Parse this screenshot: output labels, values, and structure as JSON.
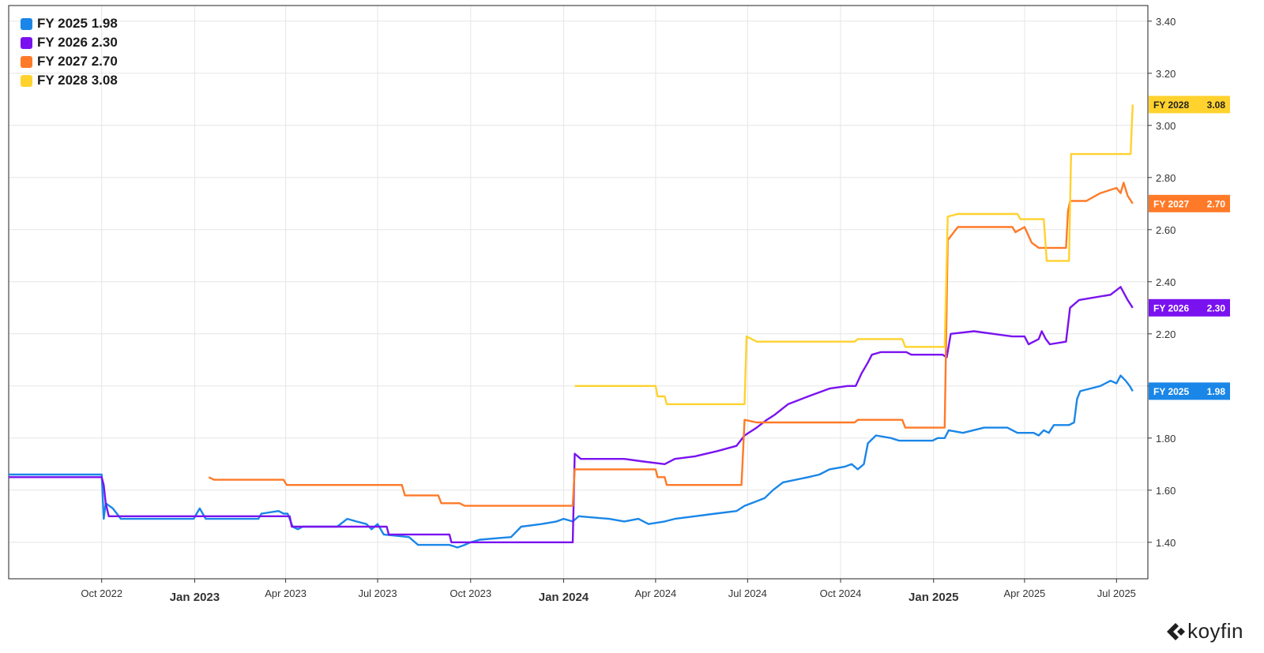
{
  "legend": [
    {
      "label": "FY 2025",
      "value": "1.98"
    },
    {
      "label": "FY 2026",
      "value": "2.30"
    },
    {
      "label": "FY 2027",
      "value": "2.70"
    },
    {
      "label": "FY 2028",
      "value": "3.08"
    }
  ],
  "brand": {
    "name": "koyfin"
  },
  "chart_data": {
    "type": "line",
    "xlim": [
      "2022-07-01",
      "2025-08-01"
    ],
    "ylim": [
      1.26,
      3.46
    ],
    "grid": true,
    "legend_position": "top-left",
    "y_ticks": [
      "1.40",
      "1.60",
      "1.80",
      "2.00",
      "2.20",
      "2.40",
      "2.60",
      "2.80",
      "3.00",
      "3.20",
      "3.40"
    ],
    "x_ticks": [
      {
        "date": "2022-10-01",
        "label": "Oct 2022",
        "bold": false
      },
      {
        "date": "2023-01-01",
        "label": "Jan 2023",
        "bold": true
      },
      {
        "date": "2023-04-01",
        "label": "Apr 2023",
        "bold": false
      },
      {
        "date": "2023-07-01",
        "label": "Jul 2023",
        "bold": false
      },
      {
        "date": "2023-10-01",
        "label": "Oct 2023",
        "bold": false
      },
      {
        "date": "2024-01-01",
        "label": "Jan 2024",
        "bold": true
      },
      {
        "date": "2024-04-01",
        "label": "Apr 2024",
        "bold": false
      },
      {
        "date": "2024-07-01",
        "label": "Jul 2024",
        "bold": false
      },
      {
        "date": "2024-10-01",
        "label": "Oct 2024",
        "bold": false
      },
      {
        "date": "2025-01-01",
        "label": "Jan 2025",
        "bold": true
      },
      {
        "date": "2025-04-01",
        "label": "Apr 2025",
        "bold": false
      },
      {
        "date": "2025-07-01",
        "label": "Jul 2025",
        "bold": false
      }
    ],
    "series": [
      {
        "name": "FY 2025",
        "last": "1.98",
        "color": "#1a86e8",
        "points": [
          [
            "2022-07-01",
            1.66
          ],
          [
            "2022-10-01",
            1.66
          ],
          [
            "2022-10-03",
            1.49
          ],
          [
            "2022-10-05",
            1.55
          ],
          [
            "2022-10-12",
            1.53
          ],
          [
            "2022-10-20",
            1.49
          ],
          [
            "2022-12-31",
            1.49
          ],
          [
            "2023-01-06",
            1.53
          ],
          [
            "2023-01-12",
            1.49
          ],
          [
            "2023-03-05",
            1.49
          ],
          [
            "2023-03-08",
            1.51
          ],
          [
            "2023-03-25",
            1.52
          ],
          [
            "2023-03-30",
            1.51
          ],
          [
            "2023-04-03",
            1.51
          ],
          [
            "2023-04-08",
            1.46
          ],
          [
            "2023-04-13",
            1.45
          ],
          [
            "2023-04-18",
            1.46
          ],
          [
            "2023-05-22",
            1.46
          ],
          [
            "2023-06-01",
            1.49
          ],
          [
            "2023-06-10",
            1.48
          ],
          [
            "2023-06-20",
            1.47
          ],
          [
            "2023-06-25",
            1.45
          ],
          [
            "2023-07-01",
            1.47
          ],
          [
            "2023-07-07",
            1.43
          ],
          [
            "2023-08-01",
            1.42
          ],
          [
            "2023-08-10",
            1.39
          ],
          [
            "2023-09-10",
            1.39
          ],
          [
            "2023-09-18",
            1.38
          ],
          [
            "2023-09-25",
            1.39
          ],
          [
            "2023-10-01",
            1.4
          ],
          [
            "2023-10-10",
            1.41
          ],
          [
            "2023-11-10",
            1.42
          ],
          [
            "2023-11-20",
            1.46
          ],
          [
            "2023-12-10",
            1.47
          ],
          [
            "2023-12-25",
            1.48
          ],
          [
            "2024-01-01",
            1.49
          ],
          [
            "2024-01-10",
            1.48
          ],
          [
            "2024-01-16",
            1.5
          ],
          [
            "2024-02-15",
            1.49
          ],
          [
            "2024-03-01",
            1.48
          ],
          [
            "2024-03-15",
            1.49
          ],
          [
            "2024-03-25",
            1.47
          ],
          [
            "2024-04-10",
            1.48
          ],
          [
            "2024-04-20",
            1.49
          ],
          [
            "2024-05-10",
            1.5
          ],
          [
            "2024-05-30",
            1.51
          ],
          [
            "2024-06-20",
            1.52
          ],
          [
            "2024-06-28",
            1.54
          ],
          [
            "2024-07-05",
            1.55
          ],
          [
            "2024-07-18",
            1.57
          ],
          [
            "2024-07-26",
            1.6
          ],
          [
            "2024-08-05",
            1.63
          ],
          [
            "2024-08-30",
            1.65
          ],
          [
            "2024-09-10",
            1.66
          ],
          [
            "2024-09-20",
            1.68
          ],
          [
            "2024-10-05",
            1.69
          ],
          [
            "2024-10-12",
            1.7
          ],
          [
            "2024-10-18",
            1.68
          ],
          [
            "2024-10-24",
            1.7
          ],
          [
            "2024-10-28",
            1.78
          ],
          [
            "2024-11-05",
            1.81
          ],
          [
            "2024-11-20",
            1.8
          ],
          [
            "2024-11-28",
            1.79
          ],
          [
            "2024-12-31",
            1.79
          ],
          [
            "2025-01-05",
            1.8
          ],
          [
            "2025-01-12",
            1.8
          ],
          [
            "2025-01-16",
            1.83
          ],
          [
            "2025-01-30",
            1.82
          ],
          [
            "2025-02-20",
            1.84
          ],
          [
            "2025-03-15",
            1.84
          ],
          [
            "2025-03-25",
            1.82
          ],
          [
            "2025-04-10",
            1.82
          ],
          [
            "2025-04-15",
            1.81
          ],
          [
            "2025-04-20",
            1.83
          ],
          [
            "2025-04-25",
            1.82
          ],
          [
            "2025-04-30",
            1.85
          ],
          [
            "2025-05-15",
            1.85
          ],
          [
            "2025-05-20",
            1.86
          ],
          [
            "2025-05-23",
            1.95
          ],
          [
            "2025-05-26",
            1.98
          ],
          [
            "2025-06-05",
            1.99
          ],
          [
            "2025-06-15",
            2.0
          ],
          [
            "2025-06-25",
            2.02
          ],
          [
            "2025-07-01",
            2.01
          ],
          [
            "2025-07-05",
            2.04
          ],
          [
            "2025-07-10",
            2.02
          ],
          [
            "2025-07-14",
            2.0
          ],
          [
            "2025-07-17",
            1.98
          ]
        ]
      },
      {
        "name": "FY 2026",
        "last": "2.30",
        "color": "#7a12f0",
        "points": [
          [
            "2022-07-01",
            1.65
          ],
          [
            "2022-10-01",
            1.65
          ],
          [
            "2022-10-03",
            1.62
          ],
          [
            "2022-10-05",
            1.55
          ],
          [
            "2022-10-08",
            1.5
          ],
          [
            "2023-04-05",
            1.5
          ],
          [
            "2023-04-07",
            1.46
          ],
          [
            "2023-07-10",
            1.46
          ],
          [
            "2023-07-12",
            1.43
          ],
          [
            "2023-09-10",
            1.43
          ],
          [
            "2023-09-12",
            1.4
          ],
          [
            "2024-01-10",
            1.4
          ],
          [
            "2024-01-12",
            1.74
          ],
          [
            "2024-01-18",
            1.72
          ],
          [
            "2024-03-01",
            1.72
          ],
          [
            "2024-03-20",
            1.71
          ],
          [
            "2024-04-10",
            1.7
          ],
          [
            "2024-04-20",
            1.72
          ],
          [
            "2024-05-10",
            1.73
          ],
          [
            "2024-06-01",
            1.75
          ],
          [
            "2024-06-20",
            1.77
          ],
          [
            "2024-06-28",
            1.81
          ],
          [
            "2024-07-10",
            1.84
          ],
          [
            "2024-07-20",
            1.87
          ],
          [
            "2024-07-28",
            1.89
          ],
          [
            "2024-08-10",
            1.93
          ],
          [
            "2024-08-30",
            1.96
          ],
          [
            "2024-09-20",
            1.99
          ],
          [
            "2024-10-08",
            2.0
          ],
          [
            "2024-10-16",
            2.0
          ],
          [
            "2024-10-22",
            2.05
          ],
          [
            "2024-10-28",
            2.09
          ],
          [
            "2024-11-01",
            2.12
          ],
          [
            "2024-11-10",
            2.13
          ],
          [
            "2024-12-05",
            2.13
          ],
          [
            "2024-12-10",
            2.12
          ],
          [
            "2025-01-10",
            2.12
          ],
          [
            "2025-01-14",
            2.11
          ],
          [
            "2025-01-18",
            2.2
          ],
          [
            "2025-02-10",
            2.21
          ],
          [
            "2025-03-20",
            2.19
          ],
          [
            "2025-04-01",
            2.19
          ],
          [
            "2025-04-05",
            2.16
          ],
          [
            "2025-04-15",
            2.18
          ],
          [
            "2025-04-18",
            2.21
          ],
          [
            "2025-04-22",
            2.18
          ],
          [
            "2025-04-26",
            2.16
          ],
          [
            "2025-05-12",
            2.17
          ],
          [
            "2025-05-16",
            2.3
          ],
          [
            "2025-05-25",
            2.33
          ],
          [
            "2025-06-25",
            2.35
          ],
          [
            "2025-07-05",
            2.38
          ],
          [
            "2025-07-12",
            2.33
          ],
          [
            "2025-07-17",
            2.3
          ]
        ]
      },
      {
        "name": "FY 2027",
        "last": "2.70",
        "color": "#ff7a28",
        "points": [
          [
            "2023-01-15",
            1.65
          ],
          [
            "2023-01-20",
            1.64
          ],
          [
            "2023-03-30",
            1.64
          ],
          [
            "2023-04-02",
            1.62
          ],
          [
            "2023-07-25",
            1.62
          ],
          [
            "2023-07-28",
            1.58
          ],
          [
            "2023-08-30",
            1.58
          ],
          [
            "2023-09-02",
            1.55
          ],
          [
            "2023-09-20",
            1.55
          ],
          [
            "2023-09-25",
            1.54
          ],
          [
            "2024-01-10",
            1.54
          ],
          [
            "2024-01-12",
            1.68
          ],
          [
            "2024-04-01",
            1.68
          ],
          [
            "2024-04-03",
            1.65
          ],
          [
            "2024-04-10",
            1.65
          ],
          [
            "2024-04-12",
            1.62
          ],
          [
            "2024-06-25",
            1.62
          ],
          [
            "2024-06-28",
            1.87
          ],
          [
            "2024-07-10",
            1.86
          ],
          [
            "2024-10-15",
            1.86
          ],
          [
            "2024-10-18",
            1.87
          ],
          [
            "2024-12-01",
            1.87
          ],
          [
            "2024-12-04",
            1.84
          ],
          [
            "2025-01-12",
            1.84
          ],
          [
            "2025-01-15",
            2.56
          ],
          [
            "2025-01-25",
            2.61
          ],
          [
            "2025-03-20",
            2.61
          ],
          [
            "2025-03-23",
            2.59
          ],
          [
            "2025-04-01",
            2.61
          ],
          [
            "2025-04-08",
            2.55
          ],
          [
            "2025-04-15",
            2.53
          ],
          [
            "2025-05-12",
            2.53
          ],
          [
            "2025-05-14",
            2.67
          ],
          [
            "2025-05-16",
            2.71
          ],
          [
            "2025-06-01",
            2.71
          ],
          [
            "2025-06-15",
            2.74
          ],
          [
            "2025-07-01",
            2.76
          ],
          [
            "2025-07-05",
            2.74
          ],
          [
            "2025-07-08",
            2.78
          ],
          [
            "2025-07-12",
            2.73
          ],
          [
            "2025-07-17",
            2.7
          ]
        ]
      },
      {
        "name": "FY 2028",
        "last": "3.08",
        "color": "#ffd22e",
        "points": [
          [
            "2024-01-12",
            2.0
          ],
          [
            "2024-04-01",
            2.0
          ],
          [
            "2024-04-03",
            1.96
          ],
          [
            "2024-04-10",
            1.96
          ],
          [
            "2024-04-12",
            1.93
          ],
          [
            "2024-06-28",
            1.93
          ],
          [
            "2024-06-30",
            2.19
          ],
          [
            "2024-07-10",
            2.17
          ],
          [
            "2024-10-15",
            2.17
          ],
          [
            "2024-10-18",
            2.18
          ],
          [
            "2024-12-01",
            2.18
          ],
          [
            "2024-12-04",
            2.15
          ],
          [
            "2025-01-12",
            2.15
          ],
          [
            "2025-01-15",
            2.65
          ],
          [
            "2025-01-25",
            2.66
          ],
          [
            "2025-03-25",
            2.66
          ],
          [
            "2025-03-28",
            2.64
          ],
          [
            "2025-04-20",
            2.64
          ],
          [
            "2025-04-23",
            2.48
          ],
          [
            "2025-05-15",
            2.48
          ],
          [
            "2025-05-17",
            2.89
          ],
          [
            "2025-07-15",
            2.89
          ],
          [
            "2025-07-17",
            3.08
          ]
        ]
      }
    ]
  }
}
